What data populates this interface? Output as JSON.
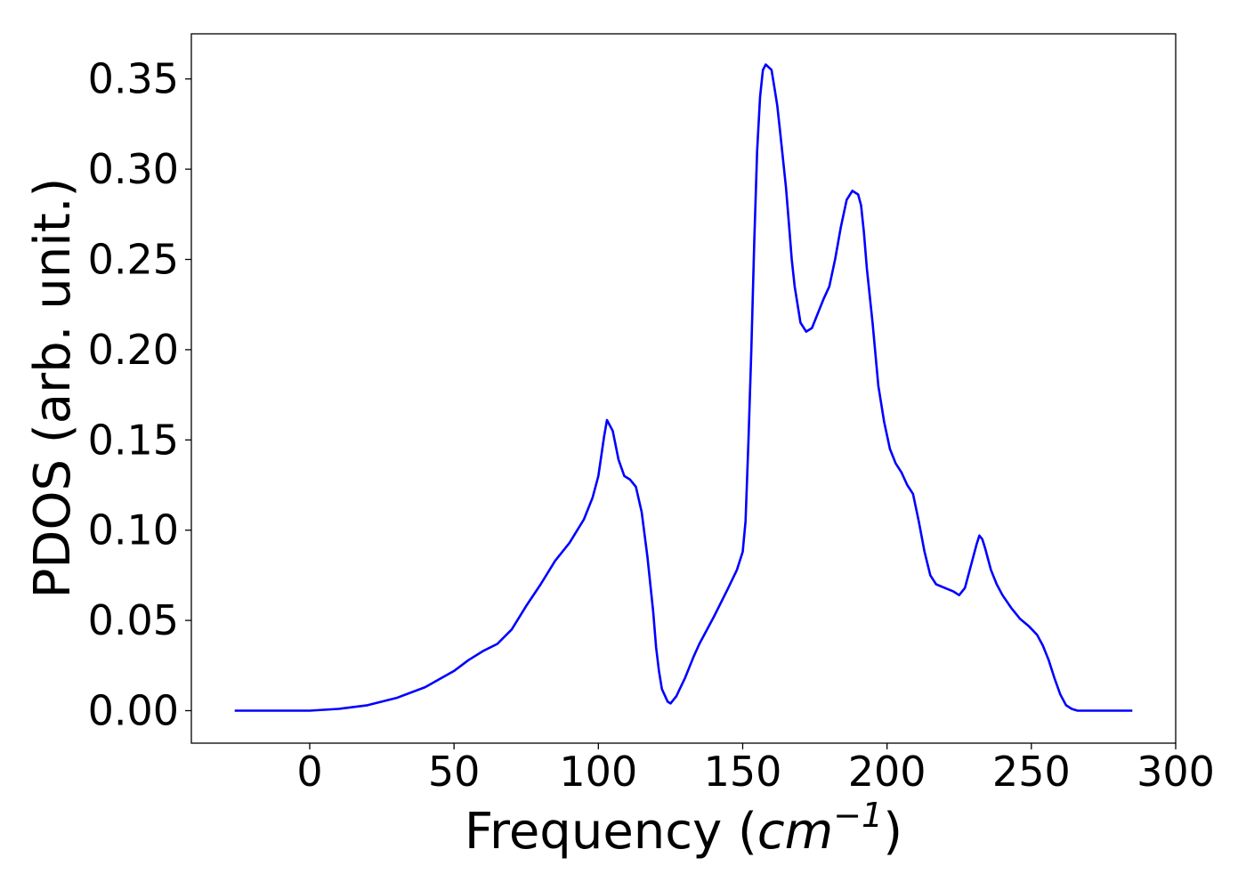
{
  "chart_data": {
    "type": "line",
    "title": "",
    "xlabel_main": "Frequency (",
    "xlabel_unit": "cm",
    "xlabel_exp": "−1",
    "xlabel_close": ")",
    "ylabel": "PDOS (arb. unit.)",
    "xlim": [
      -41,
      300
    ],
    "ylim": [
      -0.018,
      0.375
    ],
    "x_ticks": [
      0,
      50,
      100,
      150,
      200,
      250,
      300
    ],
    "x_tick_labels": [
      "0",
      "50",
      "100",
      "150",
      "200",
      "250",
      "300"
    ],
    "y_ticks": [
      0.0,
      0.05,
      0.1,
      0.15,
      0.2,
      0.25,
      0.3,
      0.35
    ],
    "y_tick_labels": [
      "0.00",
      "0.05",
      "0.10",
      "0.15",
      "0.20",
      "0.25",
      "0.30",
      "0.35"
    ],
    "grid": false,
    "legend": false,
    "series": [
      {
        "color": "#0000ff",
        "x": [
          -26,
          0,
          10,
          20,
          30,
          40,
          50,
          55,
          60,
          65,
          70,
          75,
          80,
          85,
          90,
          95,
          98,
          100,
          102,
          103,
          105,
          107,
          109,
          111,
          113,
          115,
          117,
          119,
          120,
          121,
          122,
          124,
          125,
          127,
          130,
          133,
          135,
          140,
          145,
          148,
          150,
          151,
          152,
          153,
          154,
          155,
          156,
          157,
          158,
          160,
          161,
          162,
          163,
          164,
          165,
          166,
          167,
          168,
          170,
          172,
          174,
          176,
          178,
          180,
          182,
          184,
          186,
          188,
          190,
          191,
          192,
          193,
          195,
          197,
          199,
          201,
          203,
          205,
          207,
          209,
          211,
          213,
          215,
          217,
          220,
          223,
          225,
          227,
          229,
          231,
          232,
          233,
          234,
          236,
          238,
          240,
          243,
          246,
          249,
          252,
          254,
          256,
          258,
          260,
          262,
          264,
          266,
          270,
          285
        ],
        "y": [
          0,
          0,
          0.001,
          0.003,
          0.007,
          0.013,
          0.022,
          0.028,
          0.033,
          0.037,
          0.045,
          0.058,
          0.07,
          0.083,
          0.093,
          0.106,
          0.118,
          0.13,
          0.152,
          0.161,
          0.155,
          0.139,
          0.13,
          0.128,
          0.124,
          0.11,
          0.085,
          0.055,
          0.035,
          0.022,
          0.012,
          0.005,
          0.004,
          0.008,
          0.018,
          0.03,
          0.037,
          0.052,
          0.068,
          0.078,
          0.088,
          0.105,
          0.15,
          0.2,
          0.26,
          0.31,
          0.34,
          0.355,
          0.358,
          0.355,
          0.345,
          0.335,
          0.32,
          0.305,
          0.29,
          0.27,
          0.25,
          0.235,
          0.215,
          0.21,
          0.212,
          0.22,
          0.228,
          0.235,
          0.25,
          0.268,
          0.283,
          0.288,
          0.286,
          0.28,
          0.265,
          0.245,
          0.215,
          0.18,
          0.16,
          0.145,
          0.137,
          0.132,
          0.125,
          0.12,
          0.105,
          0.088,
          0.075,
          0.07,
          0.068,
          0.066,
          0.064,
          0.068,
          0.08,
          0.092,
          0.097,
          0.095,
          0.09,
          0.078,
          0.07,
          0.064,
          0.057,
          0.051,
          0.047,
          0.042,
          0.036,
          0.028,
          0.018,
          0.009,
          0.003,
          0.001,
          0,
          0,
          0
        ]
      }
    ]
  }
}
